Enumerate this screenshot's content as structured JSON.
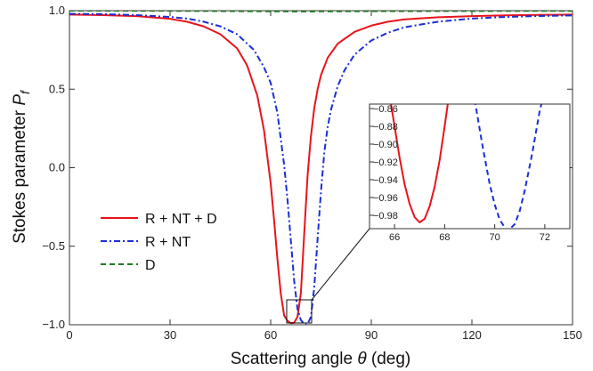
{
  "chart_data": [
    {
      "type": "line",
      "title": "",
      "xlabel": "Scattering angle θ (deg)",
      "xlabel_parts": [
        "Scattering angle ",
        "θ",
        " (deg)"
      ],
      "ylabel": "Stokes parameter P_f",
      "ylabel_parts": [
        "Stokes parameter ",
        "P",
        "f"
      ],
      "xlim": [
        0,
        150
      ],
      "ylim": [
        -1.0,
        1.0
      ],
      "xticks": [
        0,
        30,
        60,
        90,
        120,
        150
      ],
      "xtick_labels": [
        "0",
        "30",
        "60",
        "90",
        "120",
        "150"
      ],
      "yticks": [
        -1.0,
        -0.5,
        0.0,
        0.5,
        1.0
      ],
      "ytick_labels": [
        "−1.0",
        "−0.5",
        "0.0",
        "0.5",
        "1.0"
      ],
      "legend_position": "lower-left",
      "grid": false,
      "series": [
        {
          "name": "R + NT + D",
          "color": "#e8141b",
          "dash": "solid",
          "x": [
            0,
            10,
            20,
            30,
            35,
            40,
            45,
            50,
            53,
            56,
            58,
            60,
            61,
            62,
            63,
            64,
            65,
            66,
            67,
            68,
            69,
            70,
            71,
            72,
            73,
            74,
            75,
            77,
            80,
            85,
            90,
            95,
            100,
            110,
            120,
            130,
            140,
            150
          ],
          "y": [
            0.975,
            0.972,
            0.965,
            0.948,
            0.93,
            0.9,
            0.85,
            0.76,
            0.65,
            0.46,
            0.24,
            -0.1,
            -0.33,
            -0.58,
            -0.8,
            -0.94,
            -0.975,
            -0.99,
            -0.987,
            -0.95,
            -0.8,
            -0.42,
            -0.05,
            0.2,
            0.38,
            0.5,
            0.59,
            0.7,
            0.79,
            0.865,
            0.905,
            0.93,
            0.945,
            0.958,
            0.965,
            0.97,
            0.973,
            0.975
          ]
        },
        {
          "name": "R + NT",
          "color": "#1a2fd6",
          "dash": "dotdash",
          "x": [
            0,
            10,
            20,
            30,
            35,
            40,
            45,
            50,
            55,
            58,
            60,
            62,
            64,
            65,
            66,
            67,
            68,
            69,
            70,
            70.5,
            71,
            72,
            73,
            74,
            75,
            76,
            77,
            78,
            80,
            82,
            85,
            90,
            95,
            100,
            110,
            120,
            130,
            140,
            150
          ],
          "y": [
            0.98,
            0.978,
            0.972,
            0.96,
            0.95,
            0.93,
            0.9,
            0.85,
            0.75,
            0.64,
            0.54,
            0.35,
            0.02,
            -0.2,
            -0.46,
            -0.72,
            -0.9,
            -0.97,
            -0.995,
            -0.999,
            -0.995,
            -0.95,
            -0.76,
            -0.45,
            -0.15,
            0.1,
            0.26,
            0.37,
            0.52,
            0.62,
            0.72,
            0.81,
            0.86,
            0.895,
            0.93,
            0.95,
            0.96,
            0.966,
            0.97
          ]
        },
        {
          "name": "D",
          "color": "#1e7a1e",
          "dash": "dashed",
          "x": [
            0,
            30,
            60,
            70,
            80,
            90,
            120,
            150
          ],
          "y": [
            1.0,
            0.999,
            0.996,
            0.995,
            0.996,
            0.997,
            0.998,
            0.999
          ]
        }
      ]
    },
    {
      "type": "line",
      "role": "inset",
      "xlim": [
        65,
        73
      ],
      "ylim": [
        -0.995,
        -0.855
      ],
      "xticks": [
        66,
        68,
        70,
        72
      ],
      "xtick_labels": [
        "66",
        "68",
        "70",
        "72"
      ],
      "yticks": [
        -0.98,
        -0.96,
        -0.94,
        -0.92,
        -0.9,
        -0.88,
        -0.86
      ],
      "ytick_labels": [
        "−0.98",
        "−0.96",
        "−0.94",
        "−0.92",
        "−0.90",
        "−0.88",
        "−0.86"
      ],
      "series": [
        {
          "name": "R + NT + D",
          "color": "#e8141b",
          "dash": "solid",
          "x": [
            65.8,
            66.0,
            66.2,
            66.4,
            66.6,
            66.8,
            67.0,
            67.2,
            67.4,
            67.6,
            67.8,
            68.0,
            68.2
          ],
          "y": [
            -0.845,
            -0.88,
            -0.915,
            -0.945,
            -0.967,
            -0.982,
            -0.988,
            -0.984,
            -0.97,
            -0.948,
            -0.918,
            -0.88,
            -0.84
          ]
        },
        {
          "name": "R + NT",
          "color": "#1a2fd6",
          "dash": "dashed",
          "x": [
            69.2,
            69.5,
            69.8,
            70.0,
            70.2,
            70.5,
            70.8,
            71.0,
            71.2,
            71.5,
            71.8,
            72.0
          ],
          "y": [
            -0.85,
            -0.9,
            -0.945,
            -0.968,
            -0.985,
            -0.998,
            -0.99,
            -0.975,
            -0.952,
            -0.91,
            -0.862,
            -0.84
          ]
        }
      ]
    }
  ]
}
